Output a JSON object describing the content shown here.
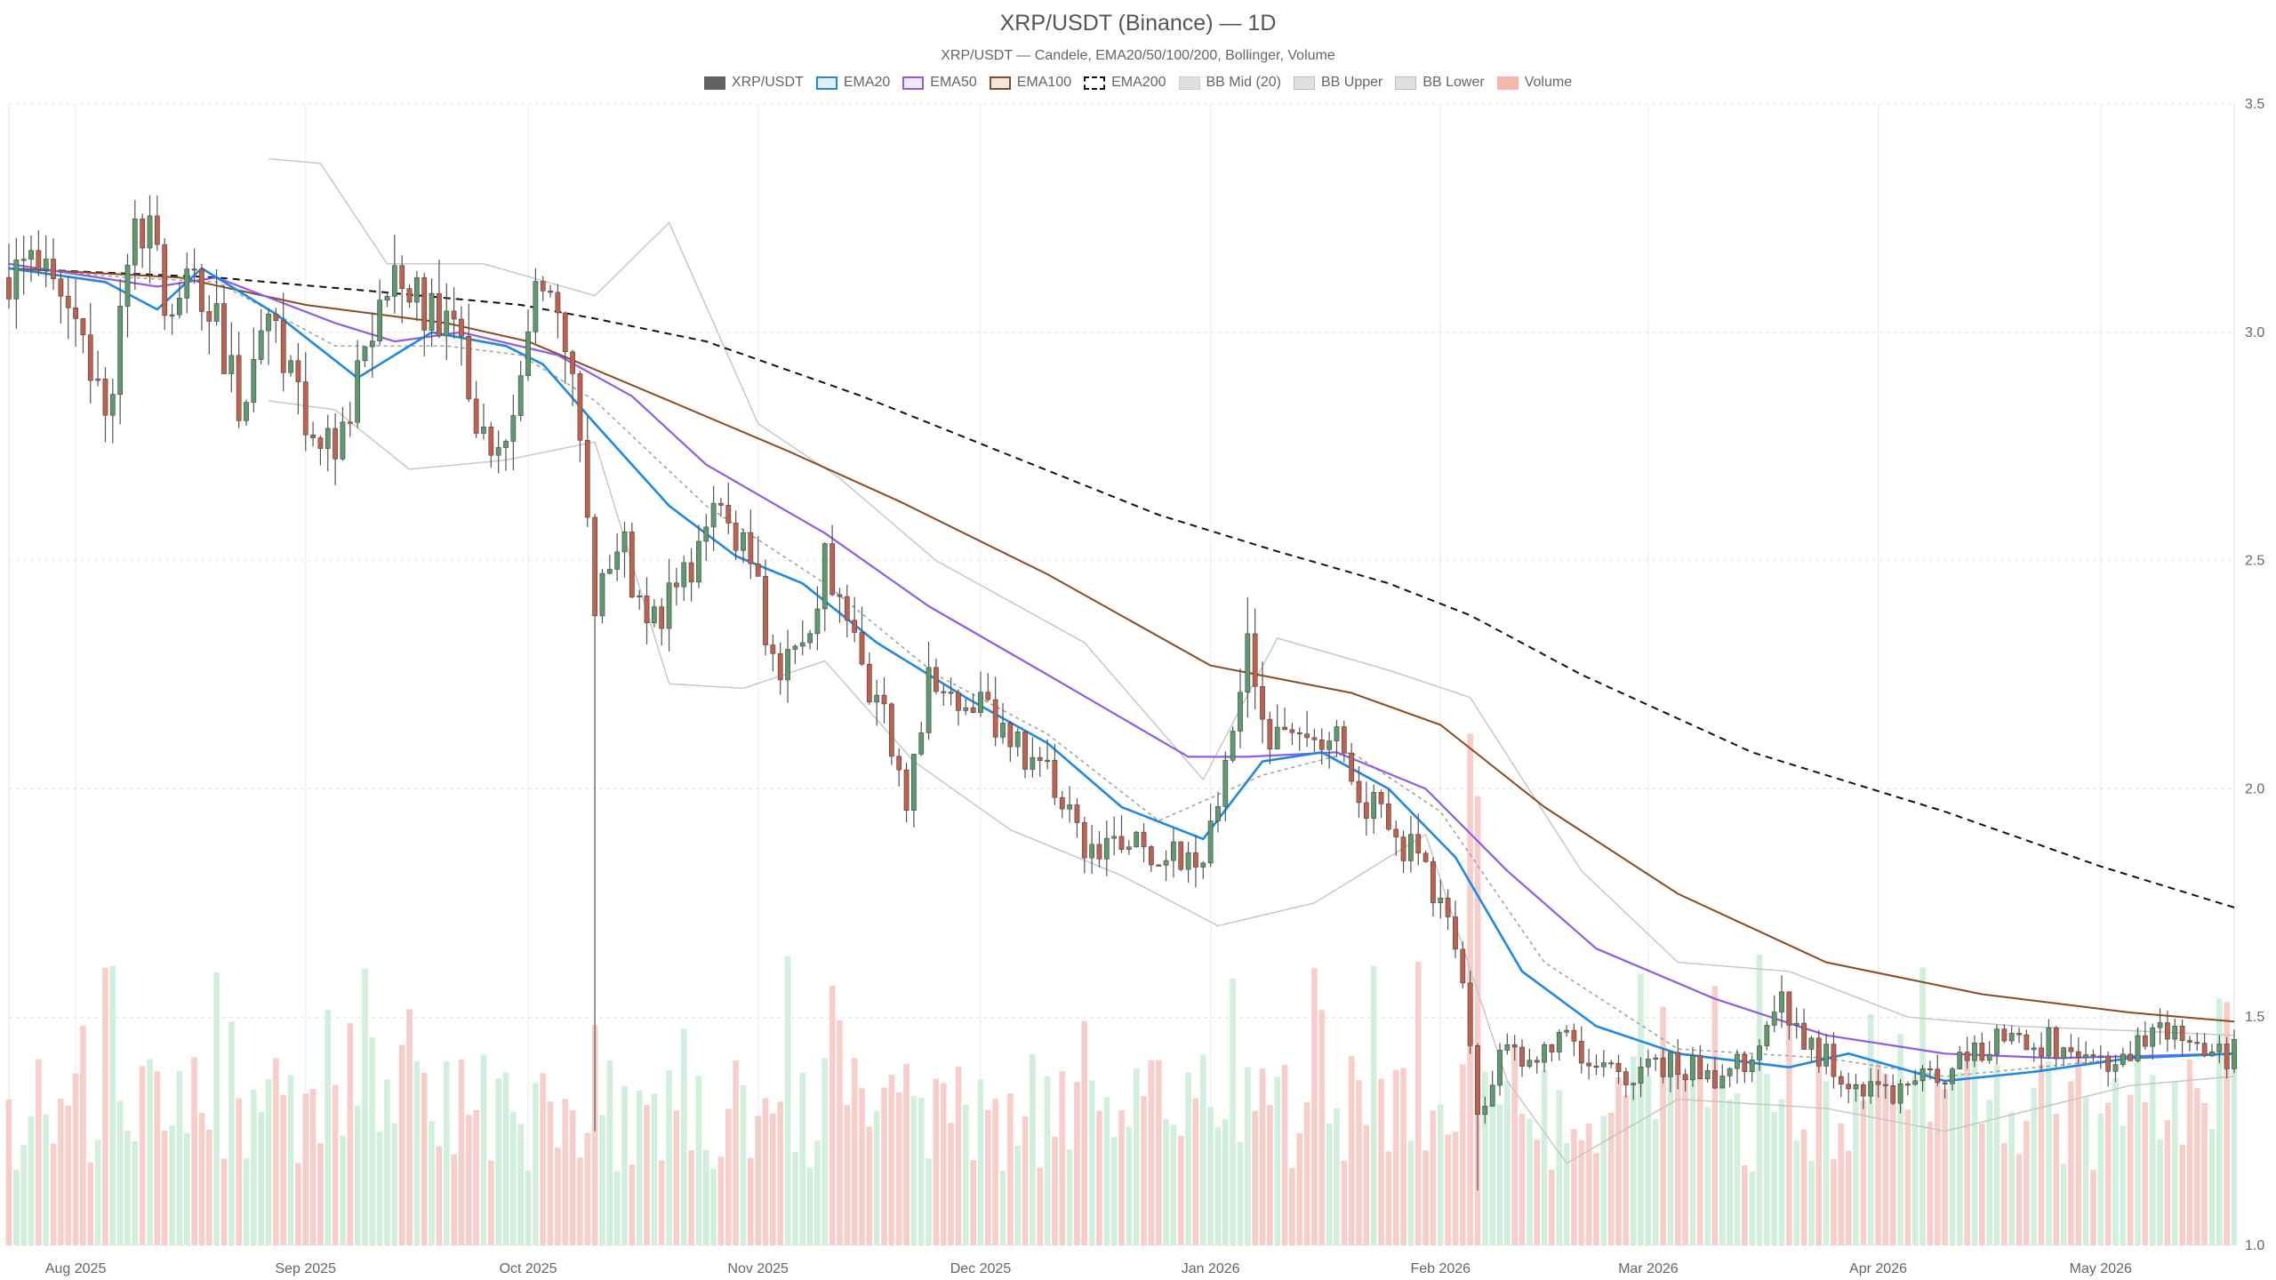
{
  "title": "XRP/USDT (Binance) — 1D",
  "subtitle": "XRP/USDT — Candele, EMA20/50/100/200, Bollinger, Volume",
  "legend": [
    {
      "label": "XRP/USDT",
      "color": "#616161",
      "style": "solid"
    },
    {
      "label": "EMA20",
      "color": "#1e88e5",
      "style": "solid"
    },
    {
      "label": "EMA50",
      "color": "#8e5ce8",
      "style": "solid"
    },
    {
      "label": "EMA100",
      "color": "#8b4a20",
      "style": "solid"
    },
    {
      "label": "EMA200",
      "color": "#111111",
      "style": "dashed"
    },
    {
      "label": "BB Mid (20)",
      "color": "#999999",
      "style": "dotted"
    },
    {
      "label": "BB Upper",
      "color": "#bdbdbd",
      "style": "solid"
    },
    {
      "label": "BB Lower",
      "color": "#bdbdbd",
      "style": "solid"
    },
    {
      "label": "Volume",
      "color": "#f4b6ae",
      "style": "solid"
    }
  ],
  "chart_data": {
    "type": "candlestick",
    "y_ticks": [
      "3.5",
      "3.0",
      "2.5",
      "2.0",
      "1.5",
      "1.0"
    ],
    "ylim": [
      1.0,
      3.5
    ],
    "x_ticks": [
      "Aug 2025",
      "Sep 2025",
      "Oct 2025",
      "Nov 2025",
      "Dec 2025",
      "Jan 2026",
      "Feb 2026",
      "Mar 2026",
      "Apr 2026",
      "May 2026"
    ],
    "x_tick_dates": [
      "2025-08-01",
      "2025-09-01",
      "2025-10-01",
      "2025-11-01",
      "2025-12-01",
      "2026-01-01",
      "2026-02-01",
      "2026-03-01",
      "2026-04-01",
      "2026-05-01"
    ],
    "x_range": [
      "2025-07-23",
      "2026-05-19"
    ],
    "grid": true,
    "legend_position": "top-center",
    "colors": {
      "up": "#5e9a6e",
      "down": "#c0604e",
      "vol_up": "#c9ecd6",
      "vol_down": "#f6c6bf"
    },
    "series": [
      {
        "name": "XRP/USDT",
        "kind": "close",
        "points": [
          [
            "2025-07-23",
            3.12
          ],
          [
            "2025-07-28",
            3.2
          ],
          [
            "2025-08-02",
            2.95
          ],
          [
            "2025-08-05",
            2.8
          ],
          [
            "2025-08-08",
            3.18
          ],
          [
            "2025-08-11",
            3.22
          ],
          [
            "2025-08-14",
            3.06
          ],
          [
            "2025-08-18",
            3.12
          ],
          [
            "2025-08-23",
            2.86
          ],
          [
            "2025-08-27",
            3.03
          ],
          [
            "2025-09-01",
            2.83
          ],
          [
            "2025-09-05",
            2.79
          ],
          [
            "2025-09-09",
            2.95
          ],
          [
            "2025-09-13",
            3.12
          ],
          [
            "2025-09-17",
            3.02
          ],
          [
            "2025-09-22",
            2.98
          ],
          [
            "2025-09-25",
            2.78
          ],
          [
            "2025-09-28",
            2.83
          ],
          [
            "2025-10-02",
            3.05
          ],
          [
            "2025-10-06",
            2.98
          ],
          [
            "2025-10-10",
            2.42
          ],
          [
            "2025-10-13",
            2.58
          ],
          [
            "2025-10-17",
            2.34
          ],
          [
            "2025-10-22",
            2.45
          ],
          [
            "2025-10-26",
            2.62
          ],
          [
            "2025-10-30",
            2.54
          ],
          [
            "2025-11-03",
            2.3
          ],
          [
            "2025-11-07",
            2.28
          ],
          [
            "2025-11-10",
            2.48
          ],
          [
            "2025-11-14",
            2.3
          ],
          [
            "2025-11-17",
            2.21
          ],
          [
            "2025-11-21",
            1.98
          ],
          [
            "2025-11-24",
            2.23
          ],
          [
            "2025-11-29",
            2.18
          ],
          [
            "2025-12-03",
            2.15
          ],
          [
            "2025-12-06",
            2.08
          ],
          [
            "2025-12-10",
            2.03
          ],
          [
            "2025-12-15",
            1.88
          ],
          [
            "2025-12-18",
            1.86
          ],
          [
            "2025-12-22",
            1.87
          ],
          [
            "2025-12-27",
            1.86
          ],
          [
            "2025-12-30",
            1.84
          ],
          [
            "2026-01-01",
            1.92
          ],
          [
            "2026-01-04",
            2.17
          ],
          [
            "2026-01-06",
            2.3
          ],
          [
            "2026-01-09",
            2.14
          ],
          [
            "2026-01-14",
            2.08
          ],
          [
            "2026-01-18",
            2.14
          ],
          [
            "2026-01-22",
            1.98
          ],
          [
            "2026-01-26",
            1.9
          ],
          [
            "2026-01-30",
            1.83
          ],
          [
            "2026-02-02",
            1.7
          ],
          [
            "2026-02-04",
            1.58
          ],
          [
            "2026-02-06",
            1.28
          ],
          [
            "2026-02-09",
            1.42
          ],
          [
            "2026-02-13",
            1.43
          ],
          [
            "2026-02-17",
            1.45
          ],
          [
            "2026-02-22",
            1.38
          ],
          [
            "2026-02-28",
            1.38
          ],
          [
            "2026-03-05",
            1.4
          ],
          [
            "2026-03-10",
            1.37
          ],
          [
            "2026-03-15",
            1.4
          ],
          [
            "2026-03-19",
            1.52
          ],
          [
            "2026-03-23",
            1.44
          ],
          [
            "2026-03-28",
            1.36
          ],
          [
            "2026-04-03",
            1.34
          ],
          [
            "2026-04-08",
            1.36
          ],
          [
            "2026-04-13",
            1.42
          ],
          [
            "2026-04-18",
            1.46
          ],
          [
            "2026-04-23",
            1.45
          ],
          [
            "2026-04-28",
            1.41
          ],
          [
            "2026-05-03",
            1.4
          ],
          [
            "2026-05-08",
            1.45
          ],
          [
            "2026-05-12",
            1.47
          ],
          [
            "2026-05-15",
            1.44
          ],
          [
            "2026-05-18",
            1.42
          ]
        ]
      },
      {
        "name": "EMA20",
        "kind": "line",
        "points": [
          [
            "2025-07-23",
            3.14
          ],
          [
            "2025-08-05",
            3.11
          ],
          [
            "2025-08-12",
            3.05
          ],
          [
            "2025-08-18",
            3.14
          ],
          [
            "2025-08-28",
            3.04
          ],
          [
            "2025-09-08",
            2.9
          ],
          [
            "2025-09-18",
            3.0
          ],
          [
            "2025-09-28",
            2.97
          ],
          [
            "2025-10-03",
            2.93
          ],
          [
            "2025-10-10",
            2.8
          ],
          [
            "2025-10-20",
            2.62
          ],
          [
            "2025-10-29",
            2.51
          ],
          [
            "2025-11-07",
            2.45
          ],
          [
            "2025-11-17",
            2.32
          ],
          [
            "2025-11-29",
            2.2
          ],
          [
            "2025-12-10",
            2.1
          ],
          [
            "2025-12-20",
            1.96
          ],
          [
            "2025-12-31",
            1.89
          ],
          [
            "2026-01-08",
            2.06
          ],
          [
            "2026-01-16",
            2.08
          ],
          [
            "2026-01-25",
            2.0
          ],
          [
            "2026-02-03",
            1.85
          ],
          [
            "2026-02-12",
            1.6
          ],
          [
            "2026-02-22",
            1.48
          ],
          [
            "2026-03-05",
            1.42
          ],
          [
            "2026-03-20",
            1.39
          ],
          [
            "2026-03-28",
            1.42
          ],
          [
            "2026-04-10",
            1.36
          ],
          [
            "2026-04-22",
            1.38
          ],
          [
            "2026-05-05",
            1.41
          ],
          [
            "2026-05-19",
            1.42
          ]
        ]
      },
      {
        "name": "EMA50",
        "kind": "line",
        "points": [
          [
            "2025-07-23",
            3.15
          ],
          [
            "2025-08-12",
            3.1
          ],
          [
            "2025-08-20",
            3.12
          ],
          [
            "2025-09-05",
            3.02
          ],
          [
            "2025-09-13",
            2.98
          ],
          [
            "2025-09-22",
            3.0
          ],
          [
            "2025-10-05",
            2.95
          ],
          [
            "2025-10-15",
            2.86
          ],
          [
            "2025-10-25",
            2.71
          ],
          [
            "2025-11-10",
            2.56
          ],
          [
            "2025-11-24",
            2.4
          ],
          [
            "2025-12-10",
            2.25
          ],
          [
            "2025-12-29",
            2.07
          ],
          [
            "2026-01-06",
            2.07
          ],
          [
            "2026-01-18",
            2.08
          ],
          [
            "2026-01-30",
            2.0
          ],
          [
            "2026-02-10",
            1.82
          ],
          [
            "2026-02-22",
            1.65
          ],
          [
            "2026-03-10",
            1.54
          ],
          [
            "2026-03-25",
            1.46
          ],
          [
            "2026-04-10",
            1.42
          ],
          [
            "2026-04-25",
            1.41
          ],
          [
            "2026-05-19",
            1.42
          ]
        ]
      },
      {
        "name": "EMA100",
        "kind": "line",
        "points": [
          [
            "2025-07-23",
            3.14
          ],
          [
            "2025-08-15",
            3.12
          ],
          [
            "2025-09-01",
            3.06
          ],
          [
            "2025-09-20",
            3.02
          ],
          [
            "2025-10-01",
            2.98
          ],
          [
            "2025-10-20",
            2.85
          ],
          [
            "2025-11-05",
            2.74
          ],
          [
            "2025-11-20",
            2.63
          ],
          [
            "2025-12-10",
            2.47
          ],
          [
            "2026-01-01",
            2.27
          ],
          [
            "2026-01-20",
            2.21
          ],
          [
            "2026-02-01",
            2.14
          ],
          [
            "2026-02-15",
            1.96
          ],
          [
            "2026-03-05",
            1.77
          ],
          [
            "2026-03-25",
            1.62
          ],
          [
            "2026-04-15",
            1.55
          ],
          [
            "2026-05-05",
            1.51
          ],
          [
            "2026-05-19",
            1.49
          ]
        ]
      },
      {
        "name": "EMA200",
        "kind": "line",
        "points": [
          [
            "2025-07-23",
            3.14
          ],
          [
            "2025-08-20",
            3.12
          ],
          [
            "2025-09-10",
            3.09
          ],
          [
            "2025-09-30",
            3.06
          ],
          [
            "2025-10-10",
            3.03
          ],
          [
            "2025-10-25",
            2.98
          ],
          [
            "2025-11-15",
            2.86
          ],
          [
            "2025-12-05",
            2.73
          ],
          [
            "2025-12-25",
            2.6
          ],
          [
            "2026-01-10",
            2.52
          ],
          [
            "2026-01-25",
            2.45
          ],
          [
            "2026-02-05",
            2.38
          ],
          [
            "2026-02-20",
            2.25
          ],
          [
            "2026-03-15",
            2.08
          ],
          [
            "2026-04-10",
            1.95
          ],
          [
            "2026-05-01",
            1.83
          ],
          [
            "2026-05-19",
            1.74
          ]
        ]
      },
      {
        "name": "BB Mid (20)",
        "kind": "line",
        "points": [
          [
            "2025-07-23",
            3.14
          ],
          [
            "2025-08-08",
            3.12
          ],
          [
            "2025-08-20",
            3.11
          ],
          [
            "2025-09-05",
            2.97
          ],
          [
            "2025-09-20",
            2.97
          ],
          [
            "2025-09-30",
            2.95
          ],
          [
            "2025-10-10",
            2.85
          ],
          [
            "2025-10-25",
            2.62
          ],
          [
            "2025-11-10",
            2.45
          ],
          [
            "2025-11-25",
            2.25
          ],
          [
            "2025-12-10",
            2.12
          ],
          [
            "2025-12-25",
            1.93
          ],
          [
            "2026-01-08",
            2.03
          ],
          [
            "2026-01-20",
            2.08
          ],
          [
            "2026-02-01",
            1.95
          ],
          [
            "2026-02-15",
            1.62
          ],
          [
            "2026-03-05",
            1.43
          ],
          [
            "2026-03-25",
            1.41
          ],
          [
            "2026-04-10",
            1.37
          ],
          [
            "2026-05-05",
            1.41
          ],
          [
            "2026-05-19",
            1.42
          ]
        ]
      },
      {
        "name": "BB Upper",
        "kind": "line",
        "points": [
          [
            "2025-08-27",
            3.38
          ],
          [
            "2025-09-03",
            3.37
          ],
          [
            "2025-09-12",
            3.15
          ],
          [
            "2025-09-25",
            3.15
          ],
          [
            "2025-10-10",
            3.08
          ],
          [
            "2025-10-20",
            3.24
          ],
          [
            "2025-11-01",
            2.8
          ],
          [
            "2025-11-12",
            2.68
          ],
          [
            "2025-11-25",
            2.5
          ],
          [
            "2025-12-15",
            2.32
          ],
          [
            "2025-12-31",
            2.02
          ],
          [
            "2026-01-10",
            2.33
          ],
          [
            "2026-01-25",
            2.26
          ],
          [
            "2026-02-05",
            2.2
          ],
          [
            "2026-02-20",
            1.82
          ],
          [
            "2026-03-05",
            1.62
          ],
          [
            "2026-03-20",
            1.6
          ],
          [
            "2026-04-05",
            1.5
          ],
          [
            "2026-04-20",
            1.48
          ],
          [
            "2026-05-05",
            1.47
          ],
          [
            "2026-05-19",
            1.46
          ]
        ]
      },
      {
        "name": "BB Lower",
        "kind": "line",
        "points": [
          [
            "2025-08-27",
            2.85
          ],
          [
            "2025-09-05",
            2.83
          ],
          [
            "2025-09-15",
            2.7
          ],
          [
            "2025-09-28",
            2.72
          ],
          [
            "2025-10-10",
            2.76
          ],
          [
            "2025-10-20",
            2.23
          ],
          [
            "2025-10-30",
            2.22
          ],
          [
            "2025-11-10",
            2.28
          ],
          [
            "2025-11-22",
            2.06
          ],
          [
            "2025-12-05",
            1.91
          ],
          [
            "2025-12-20",
            1.81
          ],
          [
            "2026-01-02",
            1.7
          ],
          [
            "2026-01-15",
            1.75
          ],
          [
            "2026-01-30",
            1.9
          ],
          [
            "2026-02-10",
            1.36
          ],
          [
            "2026-02-18",
            1.18
          ],
          [
            "2026-03-05",
            1.32
          ],
          [
            "2026-03-25",
            1.3
          ],
          [
            "2026-04-10",
            1.25
          ],
          [
            "2026-05-05",
            1.35
          ],
          [
            "2026-05-19",
            1.37
          ]
        ]
      }
    ]
  }
}
